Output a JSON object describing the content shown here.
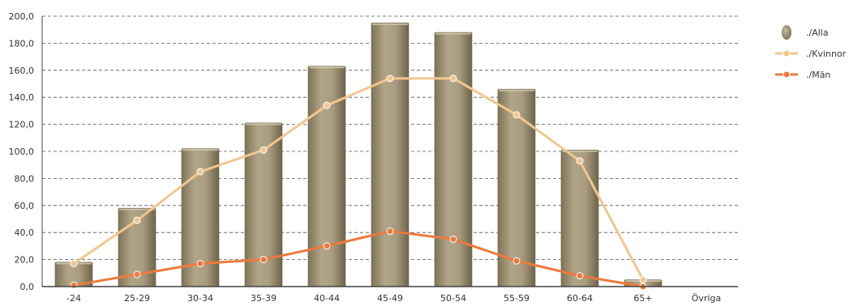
{
  "chart_data": {
    "type": "bar",
    "categories": [
      "-24",
      "25-29",
      "30-34",
      "35-39",
      "40-44",
      "45-49",
      "50-54",
      "55-59",
      "60-64",
      "65+",
      "Övriga"
    ],
    "series": [
      {
        "name": "./Alla",
        "kind": "bar",
        "color": "#a2957a",
        "values": [
          18,
          58,
          102,
          121,
          163,
          195,
          188,
          146,
          101,
          5,
          0
        ]
      },
      {
        "name": "./Kvinnor",
        "kind": "line",
        "color": "#f3c68f",
        "values": [
          17,
          49,
          85,
          101,
          134,
          154,
          154,
          127,
          93,
          5,
          null
        ]
      },
      {
        "name": "./Män",
        "kind": "line",
        "color": "#ee7a3c",
        "values": [
          1,
          9,
          17,
          20,
          30,
          41,
          35,
          19,
          8,
          0,
          null
        ]
      }
    ],
    "y_ticks": [
      "0,0",
      "20,0",
      "40,0",
      "60,0",
      "80,0",
      "100,0",
      "120,0",
      "140,0",
      "160,0",
      "180,0",
      "200,0"
    ],
    "ylim": [
      0,
      200
    ],
    "grid": "horizontal dashed",
    "legend_position": "right"
  }
}
